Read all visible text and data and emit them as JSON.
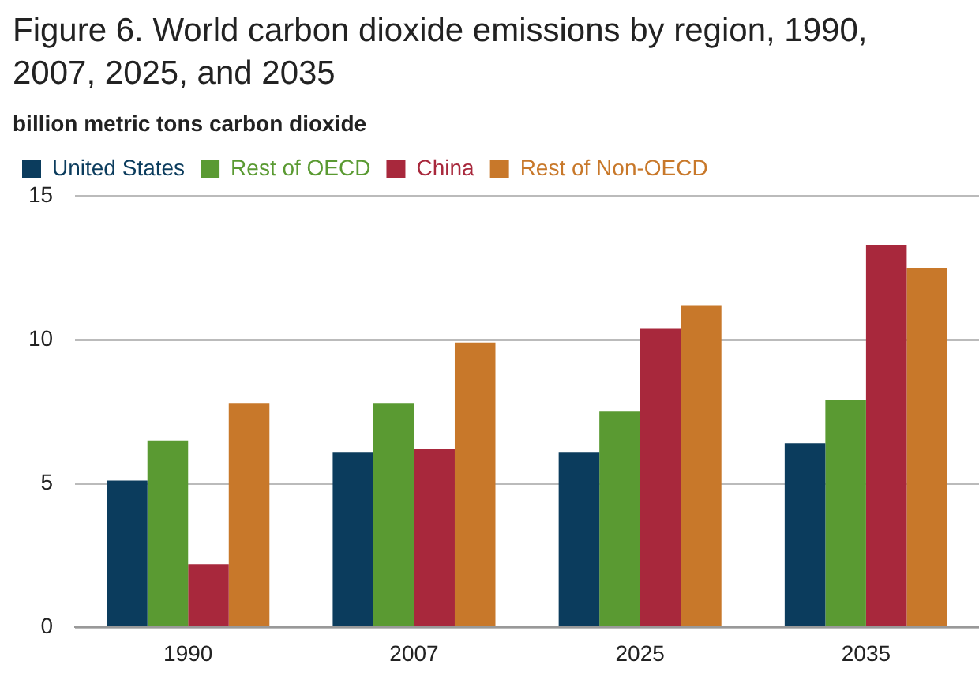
{
  "chart_data": {
    "type": "bar",
    "title": "Figure 6. World carbon dioxide emissions by region, 1990, 2007, 2025, and 2035",
    "ylabel": "billion metric tons carbon dioxide",
    "categories": [
      "1990",
      "2007",
      "2025",
      "2035"
    ],
    "series": [
      {
        "name": "United States",
        "color": "#0b3c5d",
        "values": [
          5.1,
          6.1,
          6.1,
          6.4
        ]
      },
      {
        "name": "Rest of OECD",
        "color": "#5a9a32",
        "values": [
          6.5,
          7.8,
          7.5,
          7.9
        ]
      },
      {
        "name": "China",
        "color": "#a8283c",
        "values": [
          2.2,
          6.2,
          10.4,
          13.3
        ]
      },
      {
        "name": "Rest of Non-OECD",
        "color": "#c8782a",
        "values": [
          7.8,
          9.9,
          11.2,
          12.5
        ]
      }
    ],
    "ylim": [
      0,
      15
    ],
    "yticks": [
      0,
      5,
      10,
      15
    ],
    "grid": "y",
    "legend": "top left"
  }
}
